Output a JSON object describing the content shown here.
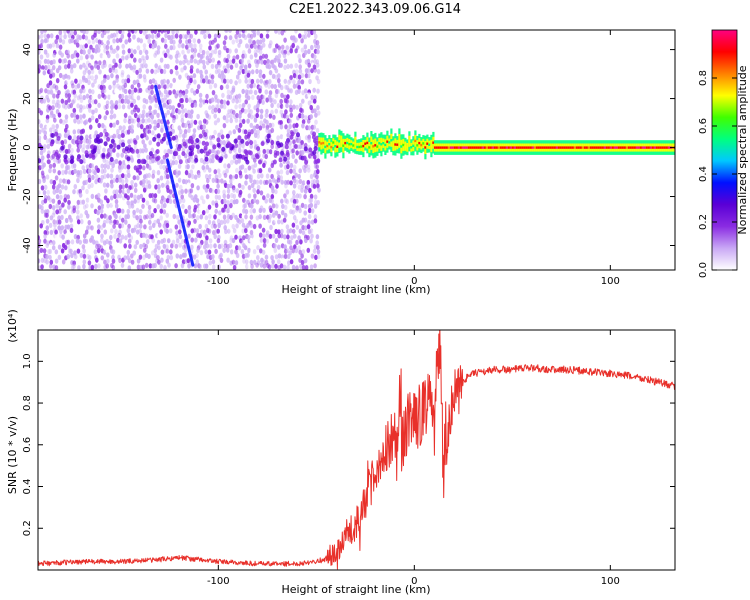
{
  "figure_title": "C2E1.2022.343.09.06.G14",
  "colors": {
    "snr_line": "#e8302a",
    "axis": "#000000",
    "background": "#ffffff"
  },
  "chart_data": [
    {
      "type": "heatmap",
      "title": "",
      "xlabel": "Height of straight line (km)",
      "ylabel": "Frequency (Hz)",
      "xlim": [
        -192,
        133
      ],
      "ylim": [
        -50,
        48
      ],
      "xticks": [
        -100,
        0,
        100
      ],
      "xtick_labels": [
        "-100",
        "0",
        "100"
      ],
      "yticks": [
        -40,
        -20,
        0,
        20,
        40
      ],
      "ytick_labels": [
        "-40",
        "-20",
        "0",
        "20",
        "40"
      ],
      "grid": false,
      "colorbar": {
        "label": "Normalized spectral amplitude",
        "range": [
          0.0,
          1.0
        ],
        "ticks": [
          0.0,
          0.2,
          0.4,
          0.6,
          0.8
        ],
        "tick_labels": [
          "0.0",
          "0.2",
          "0.4",
          "0.6",
          "0.8"
        ],
        "colormap": [
          "#ffffff",
          "#c9a8f5",
          "#8a2be2",
          "#5a00d6",
          "#0010ff",
          "#00c8ff",
          "#00ff80",
          "#40ff00",
          "#ffff00",
          "#ff8000",
          "#ff0000",
          "#ff0080"
        ]
      },
      "regions": [
        {
          "name": "noise",
          "x_range": [
            -192,
            -49
          ],
          "freq_range": [
            -50,
            48
          ],
          "amplitude": 0.12
        },
        {
          "name": "transition",
          "x_range": [
            -49,
            10
          ],
          "freq_center": 1.5,
          "freq_halfwidth": 4,
          "amplitude": 0.6
        },
        {
          "name": "carrier",
          "x_range": [
            10,
            133
          ],
          "freq_center": 0,
          "freq_halfwidth": 3,
          "amplitude": 0.95
        }
      ],
      "streaks": [
        {
          "x": [
            -132,
            -124
          ],
          "freq": [
            25,
            0
          ]
        },
        {
          "x": [
            -126,
            -113
          ],
          "freq": [
            -5,
            -48
          ]
        }
      ]
    },
    {
      "type": "line",
      "title": "",
      "xlabel": "Height of straight line (km)",
      "ylabel": "SNR (10 * v/v)",
      "y_multiplier": "(x10⁴)",
      "xlim": [
        -192,
        133
      ],
      "ylim": [
        0,
        1.15
      ],
      "xticks": [
        -100,
        0,
        100
      ],
      "xtick_labels": [
        "-100",
        "0",
        "100"
      ],
      "yticks": [
        0.2,
        0.4,
        0.6,
        0.8,
        1.0
      ],
      "ytick_labels": [
        "0.2",
        "0.4",
        "0.6",
        "0.8",
        "1.0"
      ],
      "grid": false,
      "series": [
        {
          "x": [
            -192,
            -170,
            -150,
            -130,
            -120,
            -100,
            -80,
            -60,
            -45,
            -40,
            -35,
            -30,
            -25,
            -20,
            -15,
            -10,
            -5,
            0,
            5,
            10,
            13,
            15,
            20,
            25,
            30,
            40,
            50,
            60,
            70,
            80,
            90,
            100,
            110,
            120,
            133
          ],
          "values": [
            0.03,
            0.04,
            0.04,
            0.05,
            0.06,
            0.04,
            0.03,
            0.03,
            0.05,
            0.08,
            0.15,
            0.22,
            0.33,
            0.48,
            0.58,
            0.66,
            0.68,
            0.72,
            0.78,
            0.82,
            1.08,
            0.56,
            0.85,
            0.91,
            0.94,
            0.96,
            0.96,
            0.97,
            0.96,
            0.96,
            0.95,
            0.94,
            0.93,
            0.91,
            0.88
          ]
        }
      ]
    }
  ]
}
